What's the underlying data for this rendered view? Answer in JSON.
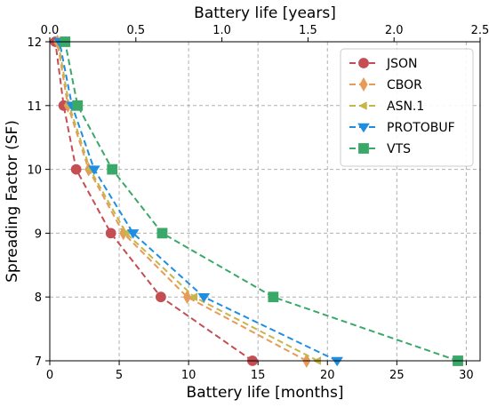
{
  "chart_data": {
    "type": "line",
    "title": "",
    "xlabel": "Battery life [months]",
    "x2label": "Battery life [years]",
    "ylabel": "Spreading Factor (SF)",
    "xlim": [
      0,
      31
    ],
    "x2lim": [
      0,
      2.5
    ],
    "ylim": [
      7,
      12
    ],
    "x_ticks": [
      0,
      5,
      10,
      15,
      20,
      25,
      30
    ],
    "x2_ticks": [
      "0.0",
      "0.5",
      "1.0",
      "1.5",
      "2.0",
      "2.5"
    ],
    "y_ticks": [
      7,
      8,
      9,
      10,
      11,
      12
    ],
    "grid": true,
    "legend_position": "top-right",
    "series": [
      {
        "name": "JSON",
        "color": "#c44e52",
        "marker": "circle",
        "x": [
          14.6,
          8.0,
          4.4,
          1.9,
          1.0,
          0.4
        ],
        "y": [
          7,
          8,
          9,
          10,
          11,
          12
        ]
      },
      {
        "name": "CBOR",
        "color": "#e89a58",
        "marker": "thin-diamond",
        "x": [
          18.5,
          9.9,
          5.3,
          2.8,
          1.3,
          0.55
        ],
        "y": [
          7,
          8,
          9,
          10,
          11,
          12
        ]
      },
      {
        "name": "ASN.1",
        "color": "#c6b54a",
        "marker": "left-triangle",
        "x": [
          19.3,
          10.4,
          5.5,
          2.9,
          1.4,
          0.6
        ],
        "y": [
          7,
          8,
          9,
          10,
          11,
          12
        ]
      },
      {
        "name": "PROTOBUF",
        "color": "#1f8ee0",
        "marker": "down-triangle",
        "x": [
          20.7,
          11.1,
          6.0,
          3.2,
          1.6,
          0.7
        ],
        "y": [
          7,
          8,
          9,
          10,
          11,
          12
        ]
      },
      {
        "name": "VTS",
        "color": "#3aa868",
        "marker": "square",
        "x": [
          29.4,
          16.1,
          8.1,
          4.5,
          2.0,
          1.1
        ],
        "y": [
          7,
          8,
          9,
          10,
          11,
          12
        ]
      }
    ]
  }
}
